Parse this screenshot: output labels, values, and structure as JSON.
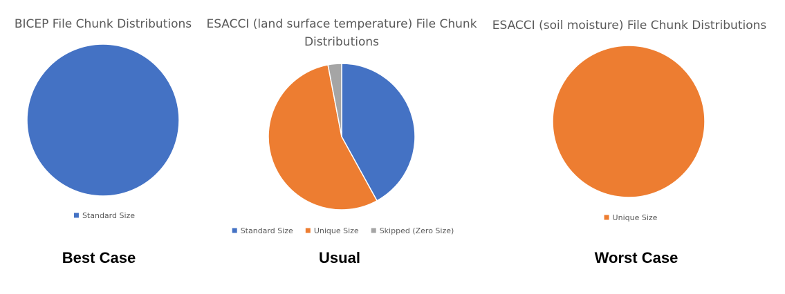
{
  "chart_data": [
    {
      "type": "pie",
      "title": "BICEP File Chunk Distributions",
      "categories": [
        "Standard Size"
      ],
      "values": [
        100
      ],
      "colors": [
        "#4472C4"
      ],
      "legend_position": "bottom",
      "caption": "Best Case"
    },
    {
      "type": "pie",
      "title_lines": [
        "ESACCI (land surface temperature) File Chunk",
        "Distributions"
      ],
      "categories": [
        "Standard Size",
        "Unique Size",
        "Skipped (Zero Size)"
      ],
      "values": [
        42,
        55,
        3
      ],
      "colors": [
        "#4472C4",
        "#ED7D31",
        "#A5A5A5"
      ],
      "legend_position": "bottom",
      "caption": "Usual"
    },
    {
      "type": "pie",
      "title": "ESACCI (soil moisture) File Chunk Distributions",
      "categories": [
        "Unique Size"
      ],
      "values": [
        100
      ],
      "colors": [
        "#ED7D31"
      ],
      "legend_position": "bottom",
      "caption": "Worst Case"
    }
  ]
}
